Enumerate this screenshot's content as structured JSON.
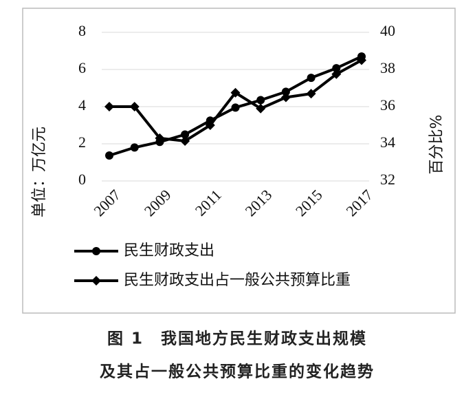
{
  "chart_data": {
    "type": "line",
    "caption": [
      "图 1　我国地方民生财政支出规模",
      "及其占一般公共预算比重的变化趋势"
    ],
    "ylabel": "单位：万亿元",
    "y2label": "百分比%",
    "x": [
      2007,
      2008,
      2009,
      2010,
      2011,
      2012,
      2013,
      2014,
      2015,
      2016,
      2017
    ],
    "xlim": [
      2006.7,
      2017.3
    ],
    "xticks": [
      2007,
      2009,
      2011,
      2013,
      2015,
      2017
    ],
    "ylim": [
      0,
      8
    ],
    "yticks": [
      0,
      2,
      4,
      6,
      8
    ],
    "y2lim": [
      32,
      40
    ],
    "y2ticks": [
      32,
      34,
      36,
      38,
      40
    ],
    "grid": true,
    "legend": "bottom",
    "series": [
      {
        "name": "民生财政支出",
        "color": "#000000",
        "marker": "circle",
        "values": [
          1.37,
          1.8,
          2.1,
          2.5,
          3.25,
          3.95,
          4.35,
          4.8,
          5.55,
          6.07,
          6.7
        ]
      },
      {
        "name": "民生财政支出占一般公共预算比重",
        "color": "#000000",
        "marker": "diamond",
        "axis": "y2",
        "values": [
          36.0,
          36.0,
          34.3,
          34.15,
          35.0,
          36.75,
          35.9,
          36.5,
          36.7,
          37.75,
          38.5
        ]
      }
    ]
  }
}
